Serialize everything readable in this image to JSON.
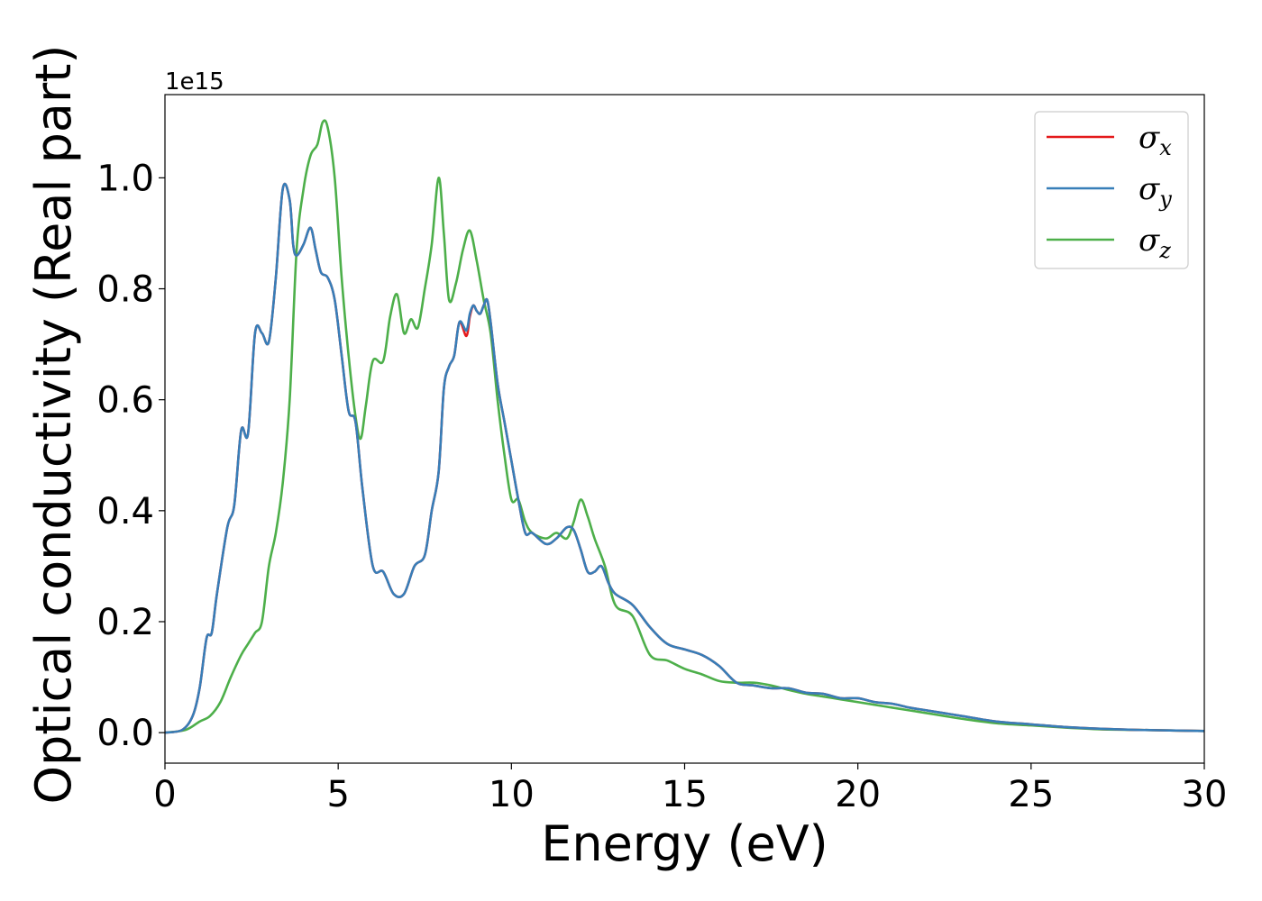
{
  "chart_data": {
    "type": "line",
    "xlabel": "Energy (eV)",
    "ylabel": "Optical conductivity (Real part)",
    "y_offset_label": "1e15",
    "xlim": [
      0,
      30
    ],
    "ylim": [
      -0.055,
      1.15
    ],
    "x_ticks": [
      0,
      5,
      10,
      15,
      20,
      25,
      30
    ],
    "x_tick_labels": [
      "0",
      "5",
      "10",
      "15",
      "20",
      "25",
      "30"
    ],
    "y_ticks": [
      0.0,
      0.2,
      0.4,
      0.6,
      0.8,
      1.0
    ],
    "y_tick_labels": [
      "0.0",
      "0.2",
      "0.4",
      "0.6",
      "0.8",
      "1.0"
    ],
    "grid": false,
    "legend_position": "top-right",
    "series": [
      {
        "name": "σx",
        "base": "σ",
        "sub": "x",
        "color": "#e41a1c",
        "x": [
          0,
          0.5,
          0.8,
          1.0,
          1.2,
          1.35,
          1.5,
          1.8,
          2.0,
          2.2,
          2.4,
          2.6,
          2.8,
          3.0,
          3.2,
          3.4,
          3.6,
          3.7,
          3.8,
          4.0,
          4.2,
          4.35,
          4.5,
          4.7,
          4.9,
          5.1,
          5.3,
          5.5,
          5.7,
          6.0,
          6.3,
          6.6,
          6.9,
          7.2,
          7.5,
          7.7,
          7.9,
          8.05,
          8.2,
          8.35,
          8.5,
          8.7,
          8.8,
          8.9,
          9.0,
          9.1,
          9.2,
          9.3,
          9.4,
          9.6,
          9.8,
          10.0,
          10.2,
          10.4,
          10.6,
          11.0,
          11.3,
          11.6,
          11.8,
          12.0,
          12.2,
          12.4,
          12.6,
          12.8,
          13.0,
          13.5,
          14.0,
          14.5,
          15.0,
          15.5,
          16.0,
          16.5,
          17.0,
          17.5,
          18.0,
          18.5,
          19.0,
          19.5,
          20.0,
          20.5,
          21.0,
          21.5,
          22.0,
          22.5,
          23.0,
          24.0,
          25.0,
          26.0,
          27.0,
          28.0,
          29.0,
          30.0
        ],
        "y": [
          0,
          0.005,
          0.03,
          0.08,
          0.17,
          0.18,
          0.25,
          0.37,
          0.41,
          0.545,
          0.54,
          0.72,
          0.72,
          0.705,
          0.82,
          0.98,
          0.96,
          0.88,
          0.86,
          0.88,
          0.91,
          0.87,
          0.83,
          0.82,
          0.78,
          0.68,
          0.58,
          0.56,
          0.44,
          0.3,
          0.29,
          0.25,
          0.25,
          0.3,
          0.32,
          0.4,
          0.47,
          0.62,
          0.66,
          0.68,
          0.74,
          0.715,
          0.75,
          0.77,
          0.76,
          0.755,
          0.77,
          0.78,
          0.74,
          0.63,
          0.56,
          0.49,
          0.42,
          0.36,
          0.36,
          0.34,
          0.35,
          0.37,
          0.365,
          0.33,
          0.29,
          0.29,
          0.3,
          0.27,
          0.25,
          0.23,
          0.19,
          0.16,
          0.15,
          0.14,
          0.12,
          0.09,
          0.085,
          0.08,
          0.08,
          0.072,
          0.07,
          0.062,
          0.062,
          0.055,
          0.052,
          0.045,
          0.04,
          0.035,
          0.03,
          0.02,
          0.015,
          0.01,
          0.007,
          0.005,
          0.004,
          0.003
        ]
      },
      {
        "name": "σy",
        "base": "σ",
        "sub": "y",
        "color": "#377eb8",
        "x": [
          0,
          0.5,
          0.8,
          1.0,
          1.2,
          1.35,
          1.5,
          1.8,
          2.0,
          2.2,
          2.4,
          2.6,
          2.8,
          3.0,
          3.2,
          3.4,
          3.6,
          3.7,
          3.8,
          4.0,
          4.2,
          4.35,
          4.5,
          4.7,
          4.9,
          5.1,
          5.3,
          5.5,
          5.7,
          6.0,
          6.3,
          6.6,
          6.9,
          7.2,
          7.5,
          7.7,
          7.9,
          8.05,
          8.2,
          8.35,
          8.5,
          8.7,
          8.8,
          8.9,
          9.0,
          9.1,
          9.2,
          9.3,
          9.4,
          9.6,
          9.8,
          10.0,
          10.2,
          10.4,
          10.6,
          11.0,
          11.3,
          11.6,
          11.8,
          12.0,
          12.2,
          12.4,
          12.6,
          12.8,
          13.0,
          13.5,
          14.0,
          14.5,
          15.0,
          15.5,
          16.0,
          16.5,
          17.0,
          17.5,
          18.0,
          18.5,
          19.0,
          19.5,
          20.0,
          20.5,
          21.0,
          21.5,
          22.0,
          22.5,
          23.0,
          24.0,
          25.0,
          26.0,
          27.0,
          28.0,
          29.0,
          30.0
        ],
        "y": [
          0,
          0.005,
          0.03,
          0.08,
          0.17,
          0.18,
          0.25,
          0.37,
          0.41,
          0.545,
          0.54,
          0.72,
          0.72,
          0.705,
          0.82,
          0.98,
          0.96,
          0.88,
          0.86,
          0.88,
          0.91,
          0.87,
          0.83,
          0.82,
          0.78,
          0.68,
          0.58,
          0.56,
          0.44,
          0.3,
          0.29,
          0.25,
          0.25,
          0.3,
          0.32,
          0.4,
          0.47,
          0.62,
          0.66,
          0.68,
          0.74,
          0.725,
          0.755,
          0.77,
          0.76,
          0.755,
          0.77,
          0.78,
          0.74,
          0.63,
          0.56,
          0.49,
          0.42,
          0.36,
          0.36,
          0.34,
          0.35,
          0.37,
          0.365,
          0.33,
          0.29,
          0.29,
          0.3,
          0.27,
          0.25,
          0.23,
          0.19,
          0.16,
          0.15,
          0.14,
          0.12,
          0.09,
          0.085,
          0.08,
          0.08,
          0.072,
          0.07,
          0.062,
          0.062,
          0.055,
          0.052,
          0.045,
          0.04,
          0.035,
          0.03,
          0.02,
          0.015,
          0.01,
          0.007,
          0.005,
          0.004,
          0.003
        ]
      },
      {
        "name": "σz",
        "base": "σ",
        "sub": "z",
        "color": "#4daf4a",
        "x": [
          0,
          0.6,
          1.0,
          1.3,
          1.6,
          1.9,
          2.2,
          2.4,
          2.6,
          2.8,
          3.0,
          3.2,
          3.4,
          3.6,
          3.8,
          4.0,
          4.2,
          4.4,
          4.55,
          4.7,
          4.9,
          5.1,
          5.3,
          5.5,
          5.65,
          5.8,
          6.0,
          6.3,
          6.5,
          6.7,
          6.9,
          7.1,
          7.3,
          7.5,
          7.7,
          7.9,
          8.05,
          8.2,
          8.4,
          8.6,
          8.8,
          9.0,
          9.2,
          9.4,
          9.6,
          9.8,
          10.0,
          10.2,
          10.4,
          10.6,
          11.0,
          11.3,
          11.6,
          11.8,
          12.0,
          12.2,
          12.4,
          12.7,
          13.0,
          13.5,
          14.0,
          14.5,
          15.0,
          15.5,
          16.0,
          16.5,
          17.0,
          17.5,
          18.0,
          18.5,
          19.0,
          19.5,
          20.0,
          20.5,
          21.0,
          21.5,
          22.0,
          22.5,
          23.0,
          24.0,
          25.0,
          26.0,
          27.0,
          28.0,
          29.0,
          30.0
        ],
        "y": [
          0,
          0.005,
          0.02,
          0.03,
          0.055,
          0.1,
          0.14,
          0.16,
          0.18,
          0.2,
          0.3,
          0.36,
          0.45,
          0.6,
          0.87,
          0.98,
          1.04,
          1.06,
          1.1,
          1.09,
          1.0,
          0.82,
          0.68,
          0.57,
          0.53,
          0.59,
          0.67,
          0.67,
          0.75,
          0.79,
          0.72,
          0.745,
          0.73,
          0.8,
          0.88,
          1.0,
          0.9,
          0.78,
          0.81,
          0.87,
          0.905,
          0.85,
          0.78,
          0.72,
          0.6,
          0.5,
          0.42,
          0.42,
          0.38,
          0.36,
          0.35,
          0.36,
          0.35,
          0.38,
          0.42,
          0.39,
          0.35,
          0.3,
          0.23,
          0.21,
          0.14,
          0.13,
          0.115,
          0.105,
          0.093,
          0.09,
          0.09,
          0.085,
          0.077,
          0.07,
          0.065,
          0.06,
          0.055,
          0.05,
          0.045,
          0.04,
          0.035,
          0.03,
          0.025,
          0.017,
          0.013,
          0.009,
          0.006,
          0.005,
          0.004,
          0.003
        ]
      }
    ]
  }
}
